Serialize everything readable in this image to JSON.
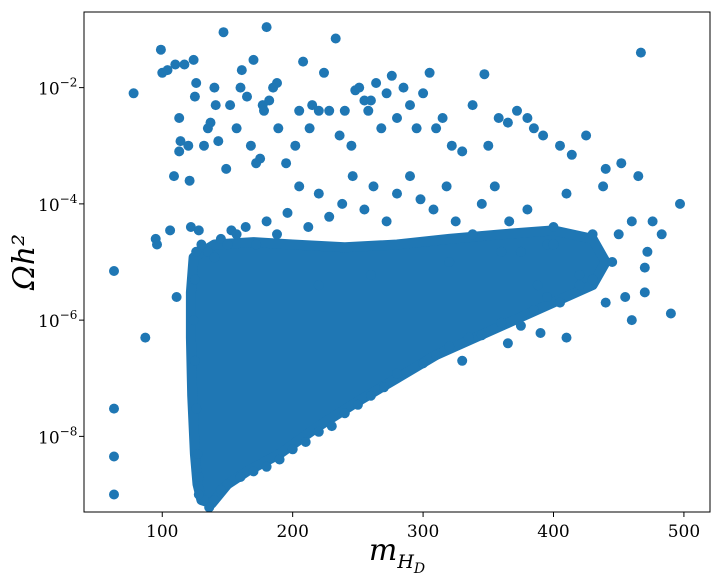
{
  "chart_data": {
    "type": "scatter",
    "title": "",
    "xlabel": "m_{H_D}",
    "ylabel": "Ωh²",
    "xlim": [
      40,
      520
    ],
    "ylim": [
      5e-10,
      0.2
    ],
    "yscale": "log",
    "grid": false,
    "legend": "none",
    "marker_color": "#1f77b4",
    "x_ticks": [
      100,
      200,
      300,
      400,
      500
    ],
    "x_tick_labels": [
      "100",
      "200",
      "300",
      "400",
      "500"
    ],
    "y_ticks": [
      1e-08,
      1e-06,
      0.0001,
      0.01
    ],
    "y_tick_labels": [
      {
        "base": "10",
        "exp": "−8"
      },
      {
        "base": "10",
        "exp": "−6"
      },
      {
        "base": "10",
        "exp": "−4"
      },
      {
        "base": "10",
        "exp": "−2"
      }
    ],
    "series": [
      {
        "points": [
          [
            63,
            7e-06
          ],
          [
            63,
            3e-08
          ],
          [
            63,
            4.5e-09
          ],
          [
            63,
            1e-09
          ],
          [
            78,
            0.008
          ],
          [
            87,
            5e-07
          ],
          [
            95,
            2.5e-05
          ],
          [
            96,
            2e-05
          ],
          [
            99,
            0.045
          ],
          [
            100,
            0.018
          ],
          [
            104,
            0.02
          ],
          [
            106,
            3.5e-05
          ],
          [
            109,
            0.0003
          ],
          [
            110,
            0.025
          ],
          [
            111,
            2.5e-06
          ],
          [
            113,
            0.003
          ],
          [
            113,
            0.0008
          ],
          [
            114,
            0.0012
          ],
          [
            117,
            0.025
          ],
          [
            120,
            0.001
          ],
          [
            121,
            0.00025
          ],
          [
            122,
            4e-05
          ],
          [
            124,
            0.03
          ],
          [
            125,
            0.007
          ],
          [
            126,
            0.012
          ],
          [
            128,
            3.5e-05
          ],
          [
            132,
            0.001
          ],
          [
            135,
            0.002
          ],
          [
            137,
            0.0025
          ],
          [
            140,
            0.01
          ],
          [
            141,
            0.005
          ],
          [
            143,
            0.0012
          ],
          [
            145,
            2.5e-05
          ],
          [
            147,
            0.09
          ],
          [
            149,
            0.0004
          ],
          [
            152,
            0.005
          ],
          [
            153,
            3.5e-05
          ],
          [
            157,
            0.002
          ],
          [
            160,
            0.01
          ],
          [
            161,
            0.02
          ],
          [
            165,
            0.007
          ],
          [
            168,
            0.001
          ],
          [
            170,
            0.03
          ],
          [
            172,
            0.0005
          ],
          [
            175,
            0.0006
          ],
          [
            177,
            0.005
          ],
          [
            178,
            0.004
          ],
          [
            180,
            0.11
          ],
          [
            182,
            0.006
          ],
          [
            185,
            0.01
          ],
          [
            188,
            0.012
          ],
          [
            189,
            0.002
          ],
          [
            195,
            0.0005
          ],
          [
            202,
            0.001
          ],
          [
            205,
            0.004
          ],
          [
            208,
            0.028
          ],
          [
            213,
            0.002
          ],
          [
            215,
            0.005
          ],
          [
            220,
            0.004
          ],
          [
            224,
            0.018
          ],
          [
            228,
            0.004
          ],
          [
            233,
            0.07
          ],
          [
            236,
            0.0015
          ],
          [
            240,
            0.004
          ],
          [
            245,
            0.001
          ],
          [
            248,
            0.009
          ],
          [
            251,
            0.01
          ],
          [
            255,
            0.006
          ],
          [
            258,
            0.004
          ],
          [
            260,
            0.006
          ],
          [
            264,
            0.012
          ],
          [
            268,
            0.002
          ],
          [
            272,
            0.008
          ],
          [
            276,
            0.016
          ],
          [
            280,
            0.003
          ],
          [
            285,
            0.01
          ],
          [
            290,
            0.005
          ],
          [
            295,
            0.002
          ],
          [
            300,
            0.008
          ],
          [
            305,
            0.018
          ],
          [
            310,
            0.002
          ],
          [
            315,
            0.003
          ],
          [
            322,
            0.001
          ],
          [
            330,
            0.0008
          ],
          [
            338,
            0.005
          ],
          [
            347,
            0.017
          ],
          [
            350,
            0.001
          ],
          [
            358,
            0.003
          ],
          [
            365,
            0.0025
          ],
          [
            372,
            0.004
          ],
          [
            380,
            0.003
          ],
          [
            385,
            0.002
          ],
          [
            392,
            0.0015
          ],
          [
            405,
            0.001
          ],
          [
            414,
            0.0007
          ],
          [
            425,
            0.0015
          ],
          [
            440,
            0.0004
          ],
          [
            452,
            0.0005
          ],
          [
            467,
            0.04
          ],
          [
            465,
            0.0003
          ],
          [
            472,
            1.5e-05
          ],
          [
            476,
            5e-05
          ],
          [
            483,
            3e-05
          ],
          [
            490,
            1.3e-06
          ],
          [
            497,
            0.0001
          ],
          [
            470,
            3e-06
          ],
          [
            460,
            5e-05
          ],
          [
            455,
            2.5e-06
          ],
          [
            445,
            1e-05
          ],
          [
            438,
            0.0002
          ],
          [
            430,
            3e-05
          ],
          [
            420,
            6e-06
          ],
          [
            410,
            0.00015
          ],
          [
            400,
            4e-05
          ],
          [
            395,
            2e-05
          ],
          [
            388,
            4e-06
          ],
          [
            380,
            8e-05
          ],
          [
            375,
            1.5e-05
          ],
          [
            366,
            5e-05
          ],
          [
            355,
            0.0002
          ],
          [
            345,
            0.0001
          ],
          [
            338,
            3e-05
          ],
          [
            325,
            5e-05
          ],
          [
            318,
            0.0002
          ],
          [
            308,
            8e-05
          ],
          [
            298,
            0.00012
          ],
          [
            290,
            0.0003
          ],
          [
            280,
            0.00015
          ],
          [
            272,
            5e-05
          ],
          [
            262,
            0.0002
          ],
          [
            255,
            8e-05
          ],
          [
            246,
            0.0003
          ],
          [
            238,
            0.0001
          ],
          [
            228,
            6e-05
          ],
          [
            220,
            0.00015
          ],
          [
            212,
            4e-05
          ],
          [
            205,
            0.0002
          ],
          [
            196,
            7e-05
          ],
          [
            188,
            3e-05
          ],
          [
            180,
            5e-05
          ],
          [
            172,
            2e-05
          ],
          [
            164,
            4e-05
          ],
          [
            157,
            3e-05
          ],
          [
            150,
            2e-05
          ],
          [
            300,
            1.8e-07
          ],
          [
            310,
            2.5e-07
          ],
          [
            320,
            3.5e-07
          ],
          [
            335,
            5e-07
          ],
          [
            345,
            5.5e-07
          ],
          [
            360,
            9e-07
          ],
          [
            375,
            8e-07
          ],
          [
            385,
            1.5e-06
          ],
          [
            395,
            2.5e-06
          ],
          [
            405,
            2e-06
          ],
          [
            420,
            4e-06
          ],
          [
            430,
            5e-06
          ],
          [
            280,
            1.2e-07
          ],
          [
            270,
            7e-08
          ],
          [
            260,
            5e-08
          ],
          [
            250,
            3.5e-08
          ],
          [
            240,
            2.5e-08
          ],
          [
            230,
            1.5e-08
          ],
          [
            220,
            1.2e-08
          ],
          [
            210,
            8e-09
          ],
          [
            200,
            6e-09
          ],
          [
            190,
            4e-09
          ],
          [
            180,
            3e-09
          ],
          [
            170,
            2.5e-09
          ],
          [
            160,
            2e-09
          ],
          [
            150,
            1.5e-09
          ],
          [
            145,
            1.2e-09
          ],
          [
            140,
            8e-10
          ],
          [
            136,
            6e-10
          ],
          [
            132,
            8e-10
          ],
          [
            128,
            1e-09
          ],
          [
            128,
            2e-09
          ],
          [
            127,
            5e-09
          ],
          [
            126,
            3e-08
          ],
          [
            125,
            2e-07
          ],
          [
            124,
            1e-06
          ],
          [
            125,
            5e-06
          ],
          [
            126,
            1.5e-05
          ],
          [
            130,
            2e-05
          ],
          [
            135,
            1.5e-05
          ],
          [
            140,
            1.2e-05
          ],
          [
            220,
            4e-06
          ],
          [
            260,
            6e-06
          ],
          [
            320,
            1e-05
          ],
          [
            360,
            1.5e-05
          ],
          [
            400,
            2e-05
          ],
          [
            450,
            3e-05
          ],
          [
            470,
            8e-06
          ],
          [
            460,
            1e-06
          ],
          [
            440,
            2e-06
          ],
          [
            410,
            5e-07
          ],
          [
            390,
            6e-07
          ],
          [
            365,
            4e-07
          ],
          [
            330,
            2e-07
          ]
        ]
      }
    ],
    "density_region": [
      [
        124,
        1.2e-05
      ],
      [
        140,
        2e-05
      ],
      [
        170,
        2.2e-05
      ],
      [
        200,
        2e-05
      ],
      [
        240,
        1.8e-05
      ],
      [
        280,
        2e-05
      ],
      [
        320,
        2.5e-05
      ],
      [
        360,
        3e-05
      ],
      [
        400,
        3.5e-05
      ],
      [
        430,
        2.5e-05
      ],
      [
        440,
        1e-05
      ],
      [
        430,
        4e-06
      ],
      [
        400,
        2e-06
      ],
      [
        370,
        1e-06
      ],
      [
        340,
        5e-07
      ],
      [
        310,
        2.5e-07
      ],
      [
        280,
        1e-07
      ],
      [
        250,
        4e-08
      ],
      [
        220,
        1.5e-08
      ],
      [
        190,
        5e-09
      ],
      [
        165,
        2.5e-09
      ],
      [
        150,
        1.5e-09
      ],
      [
        138,
        7e-10
      ],
      [
        130,
        8e-10
      ],
      [
        127,
        1.5e-09
      ],
      [
        125,
        5e-09
      ],
      [
        123,
        5e-08
      ],
      [
        122,
        5e-07
      ],
      [
        122,
        3e-06
      ]
    ]
  }
}
